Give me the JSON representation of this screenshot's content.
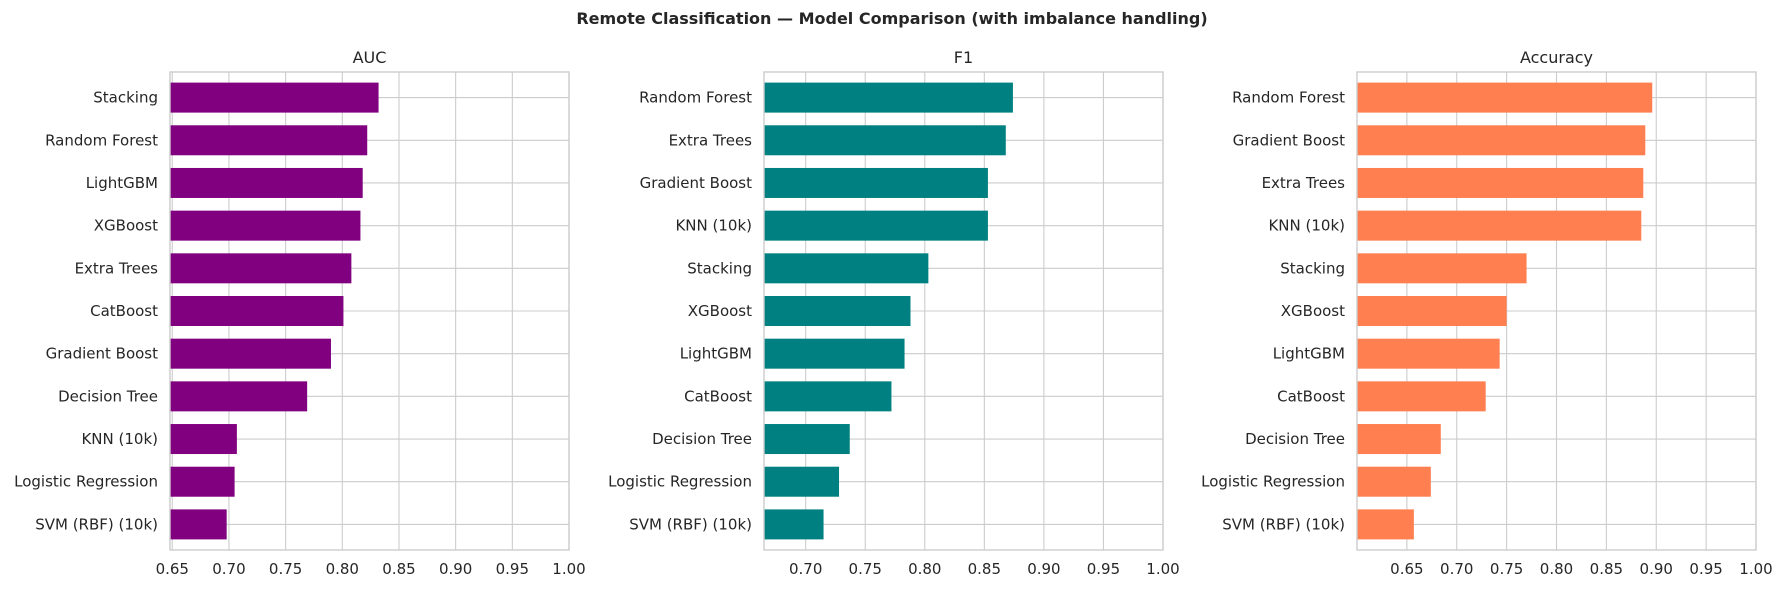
{
  "figure": {
    "suptitle": "Remote Classification — Model Comparison (with imbalance handling)"
  },
  "chart_data": [
    {
      "type": "bar",
      "orientation": "horizontal",
      "title": "AUC",
      "xlabel": "",
      "ylabel": "",
      "xlim": [
        0.648,
        1.0
      ],
      "xticks": [
        "0.65",
        "0.70",
        "0.75",
        "0.80",
        "0.85",
        "0.90",
        "0.95",
        "1.00"
      ],
      "grid": true,
      "color": "#800080",
      "categories": [
        "Stacking",
        "Random Forest",
        "LightGBM",
        "XGBoost",
        "Extra Trees",
        "CatBoost",
        "Gradient Boost",
        "Decision Tree",
        "KNN (10k)",
        "Logistic Regression",
        "SVM (RBF) (10k)"
      ],
      "values": [
        0.832,
        0.822,
        0.818,
        0.816,
        0.808,
        0.801,
        0.79,
        0.769,
        0.707,
        0.705,
        0.698
      ]
    },
    {
      "type": "bar",
      "orientation": "horizontal",
      "title": "F1",
      "xlabel": "",
      "ylabel": "",
      "xlim": [
        0.665,
        1.0
      ],
      "xticks": [
        "0.70",
        "0.75",
        "0.80",
        "0.85",
        "0.90",
        "0.95",
        "1.00"
      ],
      "grid": true,
      "color": "#008080",
      "categories": [
        "Random Forest",
        "Extra Trees",
        "Gradient Boost",
        "KNN (10k)",
        "Stacking",
        "XGBoost",
        "LightGBM",
        "CatBoost",
        "Decision Tree",
        "Logistic Regression",
        "SVM (RBF) (10k)"
      ],
      "values": [
        0.874,
        0.868,
        0.853,
        0.853,
        0.803,
        0.788,
        0.783,
        0.772,
        0.737,
        0.728,
        0.715
      ]
    },
    {
      "type": "bar",
      "orientation": "horizontal",
      "title": "Accuracy",
      "xlabel": "",
      "ylabel": "",
      "xlim": [
        0.6,
        1.0
      ],
      "xticks": [
        "0.65",
        "0.70",
        "0.75",
        "0.80",
        "0.85",
        "0.90",
        "0.95",
        "1.00"
      ],
      "grid": true,
      "color": "#ff7f50",
      "categories": [
        "Random Forest",
        "Gradient Boost",
        "Extra Trees",
        "KNN (10k)",
        "Stacking",
        "XGBoost",
        "LightGBM",
        "CatBoost",
        "Decision Tree",
        "Logistic Regression",
        "SVM (RBF) (10k)"
      ],
      "values": [
        0.896,
        0.889,
        0.887,
        0.885,
        0.77,
        0.75,
        0.743,
        0.729,
        0.684,
        0.674,
        0.657
      ]
    }
  ]
}
